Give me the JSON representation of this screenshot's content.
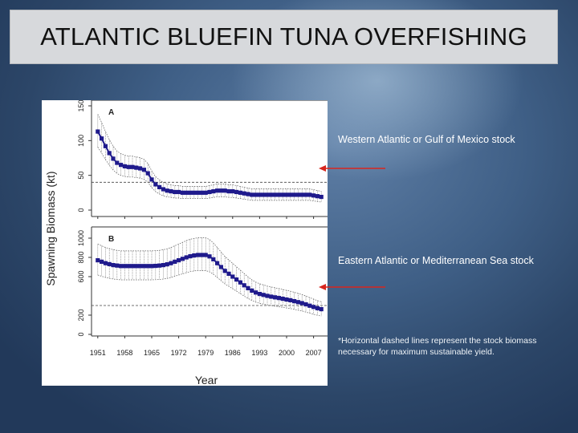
{
  "slide": {
    "title": "ATLANTIC BLUEFIN TUNA OVERFISHING",
    "annotation_western": "Western Atlantic or Gulf of Mexico stock",
    "annotation_eastern": "Eastern Atlantic or Mediterranean Sea stock",
    "footnote": "*Horizontal dashed lines represent the stock biomass necessary for maximum sustainable yield.",
    "arrow_color": "#d8261e"
  },
  "chart_data": [
    {
      "type": "line",
      "panel": "A",
      "ylabel": "Spawning Biomass (kt)",
      "xlabel": "Year",
      "xlim": [
        1950,
        2010
      ],
      "ylim": [
        0,
        150
      ],
      "yticks": [
        0,
        50,
        100,
        150
      ],
      "xticks": [
        1951,
        1958,
        1965,
        1972,
        1979,
        1986,
        1993,
        2000,
        2007
      ],
      "msy_reference": 40,
      "series_color": "#1f1a8c",
      "x": [
        1951,
        1952,
        1953,
        1954,
        1955,
        1956,
        1957,
        1958,
        1959,
        1960,
        1961,
        1962,
        1963,
        1964,
        1965,
        1966,
        1967,
        1968,
        1969,
        1970,
        1971,
        1972,
        1973,
        1974,
        1975,
        1976,
        1977,
        1978,
        1979,
        1980,
        1981,
        1982,
        1983,
        1984,
        1985,
        1986,
        1987,
        1988,
        1989,
        1990,
        1991,
        1992,
        1993,
        1994,
        1995,
        1996,
        1997,
        1998,
        1999,
        2000,
        2001,
        2002,
        2003,
        2004,
        2005,
        2006,
        2007,
        2008,
        2009
      ],
      "values": [
        113,
        103,
        92,
        82,
        74,
        68,
        65,
        63,
        62,
        62,
        61,
        60,
        58,
        53,
        44,
        37,
        33,
        30,
        28,
        27,
        26,
        26,
        25,
        25,
        25,
        25,
        25,
        25,
        25,
        26,
        27,
        28,
        28,
        28,
        27,
        27,
        26,
        25,
        24,
        23,
        22,
        22,
        22,
        22,
        22,
        22,
        22,
        22,
        22,
        22,
        22,
        22,
        22,
        22,
        22,
        22,
        21,
        20,
        19
      ]
    },
    {
      "type": "line",
      "panel": "B",
      "ylabel": "Spawning Biomass (kt)",
      "xlabel": "Year",
      "xlim": [
        1950,
        2010
      ],
      "ylim": [
        0,
        1000
      ],
      "yticks": [
        0,
        200,
        600,
        800,
        1000
      ],
      "xticks": [
        1951,
        1958,
        1965,
        1972,
        1979,
        1986,
        1993,
        2000,
        2007
      ],
      "msy_reference": 300,
      "series_color": "#1f1a8c",
      "x": [
        1951,
        1952,
        1953,
        1954,
        1955,
        1956,
        1957,
        1958,
        1959,
        1960,
        1961,
        1962,
        1963,
        1964,
        1965,
        1966,
        1967,
        1968,
        1969,
        1970,
        1971,
        1972,
        1973,
        1974,
        1975,
        1976,
        1977,
        1978,
        1979,
        1980,
        1981,
        1982,
        1983,
        1984,
        1985,
        1986,
        1987,
        1988,
        1989,
        1990,
        1991,
        1992,
        1993,
        1994,
        1995,
        1996,
        1997,
        1998,
        1999,
        2000,
        2001,
        2002,
        2003,
        2004,
        2005,
        2006,
        2007,
        2008,
        2009
      ],
      "values": [
        770,
        755,
        740,
        730,
        720,
        715,
        710,
        710,
        710,
        710,
        710,
        710,
        710,
        710,
        710,
        712,
        715,
        720,
        728,
        740,
        755,
        770,
        785,
        800,
        812,
        820,
        825,
        825,
        825,
        810,
        780,
        740,
        700,
        660,
        630,
        600,
        570,
        540,
        510,
        480,
        455,
        435,
        420,
        410,
        400,
        392,
        385,
        378,
        370,
        362,
        355,
        345,
        335,
        325,
        312,
        298,
        285,
        272,
        262
      ]
    }
  ]
}
